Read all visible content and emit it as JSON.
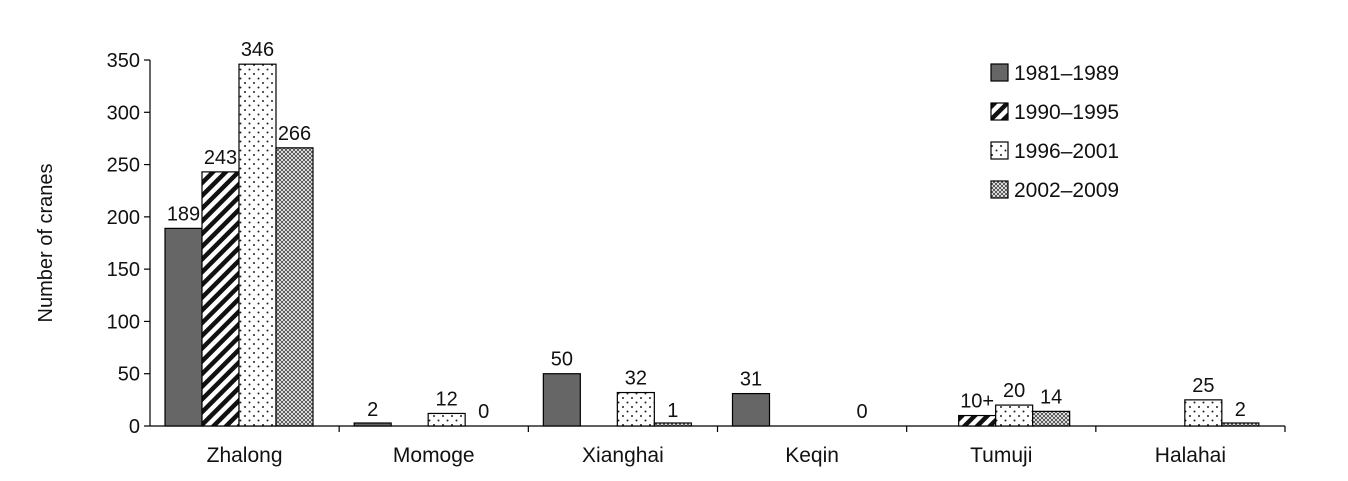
{
  "chart_data": {
    "type": "bar",
    "ylabel": "Number of cranes",
    "ylim": [
      0,
      350
    ],
    "yticks": [
      0,
      50,
      100,
      150,
      200,
      250,
      300,
      350
    ],
    "categories": [
      "Zhalong",
      "Momoge",
      "Xianghai",
      "Keqin",
      "Tumuji",
      "Halahai"
    ],
    "legend_position": "top-right",
    "series": [
      {
        "name": "1981–1989",
        "pattern": "solid-gray",
        "color": "#666666",
        "values": [
          189,
          2,
          50,
          31,
          null,
          null
        ],
        "labels": [
          "189",
          "2",
          "50",
          "31",
          "",
          ""
        ]
      },
      {
        "name": "1990–1995",
        "pattern": "diagonal-hatch",
        "values": [
          243,
          null,
          null,
          null,
          10,
          null
        ],
        "labels": [
          "243",
          "",
          "",
          "",
          "10+",
          ""
        ]
      },
      {
        "name": "1996–2001",
        "pattern": "dotted",
        "values": [
          346,
          12,
          32,
          null,
          20,
          25
        ],
        "labels": [
          "346",
          "12",
          "32",
          "",
          "20",
          "25"
        ]
      },
      {
        "name": "2002–2009",
        "pattern": "fine-crosshatch",
        "values": [
          266,
          0,
          1,
          0,
          14,
          2
        ],
        "labels": [
          "266",
          "0",
          "1",
          "0",
          "14",
          "2"
        ]
      }
    ]
  }
}
